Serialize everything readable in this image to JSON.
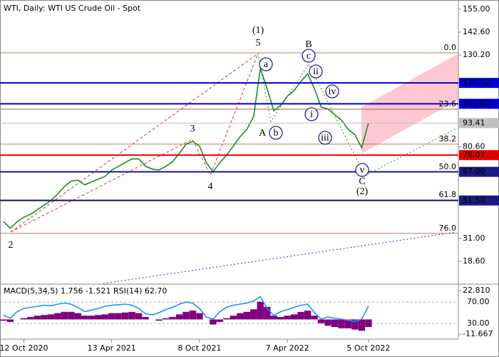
{
  "chart_data": [
    {
      "type": "line",
      "title": "WTI, Daily:  WTI US Crude Oil - Spot",
      "color": "#1f8a1f",
      "categories": [
        null,
        null,
        null,
        "12 Oct 2020",
        null,
        null,
        null,
        null,
        null,
        null,
        null,
        null,
        null,
        null,
        null,
        null,
        "13 Apr 2021",
        null,
        null,
        null,
        null,
        null,
        null,
        null,
        null,
        null,
        null,
        null,
        null,
        "8 Oct 2021",
        null,
        null,
        null,
        null,
        null,
        null,
        null,
        null,
        null,
        null,
        null,
        null,
        "7 Apr 2022",
        null,
        null,
        null,
        null,
        null,
        null,
        null,
        null,
        null,
        null,
        null,
        "5 Oct 2022"
      ],
      "values": [
        40,
        36.5,
        40,
        42.5,
        44,
        46.5,
        49,
        51.5,
        55,
        59,
        62,
        62.5,
        60,
        61.5,
        63,
        64.5,
        68,
        70,
        72,
        74,
        74,
        70,
        68.5,
        68,
        70,
        72.5,
        77,
        82,
        83.5,
        81,
        72,
        67,
        72,
        76,
        81,
        86,
        90,
        97,
        123,
        112,
        100,
        103,
        108,
        111,
        116,
        120,
        112,
        102,
        101,
        98,
        95,
        90,
        87,
        80,
        93.41
      ],
      "ylim": [
        6.6,
        160
      ],
      "yticks": [
        {
          "value": 155,
          "label": "155.00"
        },
        {
          "value": 142.6,
          "label": "142.60"
        },
        {
          "value": 130.2,
          "label": "130.20"
        },
        {
          "value": 80.6,
          "label": "80.60"
        },
        {
          "value": 31,
          "label": "31.00"
        },
        {
          "value": 18.6,
          "label": "18.60"
        }
      ],
      "levels": [
        {
          "value": 115.12,
          "color": "#0000cc"
        },
        {
          "value": 103.83,
          "color": "#0000cc"
        },
        {
          "value": 93.41,
          "color": "#c0c0c0"
        },
        {
          "value": 76.07,
          "color": "#e00000"
        },
        {
          "value": {
            "value": 67,
            "label": "67.00"
          },
          "color": "#1a1a80"
        },
        {
          "value": {
            "value": 51.5,
            "label": "51.50"
          },
          "color": "#1a1a80"
        }
      ],
      "fib_levels": [
        {
          "value": 131.4,
          "label": "0.0"
        },
        {
          "value": 100.9,
          "label": "23.6"
        },
        {
          "value": 82,
          "label": "38.2"
        },
        {
          "value": 66.9,
          "label": "50.0"
        },
        {
          "value": 51.8,
          "label": "61.8"
        },
        {
          "value": 33.7,
          "label": "76.0"
        }
      ],
      "fib_color": "#a0522d",
      "annotations": [
        {
          "text": "(1)",
          "color": "#2e8b2e"
        },
        {
          "text": "5",
          "color": "#a0522d"
        },
        {
          "text": "B",
          "color": "#a0522d"
        },
        {
          "text": "c",
          "color": "#2222aa"
        },
        {
          "text": "a",
          "color": "#2222aa"
        },
        {
          "text": "ii",
          "color": "#2222aa"
        },
        {
          "text": "iv",
          "color": "#2222aa"
        },
        {
          "text": "3",
          "color": "#a0522d"
        },
        {
          "text": "A",
          "color": "#a0522d"
        },
        {
          "text": "b",
          "color": "#2222aa"
        },
        {
          "text": "i",
          "color": "#2222aa"
        },
        {
          "text": "iii",
          "color": "#2222aa"
        },
        {
          "text": "4",
          "color": "#a0522d"
        },
        {
          "text": "v",
          "color": "#2222aa"
        },
        {
          "text": "C",
          "color": "#a0522d"
        },
        {
          "text": "(2)",
          "color": "#2e8b2e"
        },
        {
          "text": "2",
          "color": "#a0522d"
        }
      ]
    },
    {
      "type": "bar",
      "title": "MACD(5,34,5) 1.756 -1.521 RSI(14) 62.70",
      "ylim": [
        -15.6,
        26.8
      ],
      "yticks": [
        {
          "value": 22.81,
          "label": "22.810"
        },
        {
          "value": -11.667,
          "label": "-11.667"
        }
      ],
      "y2lim": [
        0.7,
        100.7
      ],
      "y2ticks": [
        {
          "value": 70,
          "label": "70.00"
        },
        {
          "value": 30,
          "label": "30.00"
        }
      ],
      "series": [
        {
          "color": "#800080",
          "values": [
            -1,
            -2,
            0,
            1,
            2,
            3,
            3.5,
            4,
            5,
            6,
            6,
            5,
            3,
            3,
            3.5,
            4,
            5,
            5,
            5.5,
            6,
            5,
            2,
            0,
            -1,
            1,
            2,
            4,
            6,
            7,
            5,
            0,
            -4,
            -2,
            1,
            3,
            5,
            6,
            8,
            14,
            10,
            3,
            2,
            3,
            4,
            6,
            7,
            3,
            -3,
            -5,
            -6,
            -7,
            -7,
            -8,
            -9,
            -6
          ]
        },
        {
          "type": "line",
          "axis": "y2",
          "color": "#1e90ff",
          "values": [
            45,
            40,
            52,
            58,
            60,
            62,
            64,
            63,
            66,
            68,
            66,
            60,
            52,
            55,
            58,
            62,
            64,
            65,
            66,
            64,
            58,
            48,
            46,
            50,
            56,
            60,
            66,
            70,
            68,
            58,
            42,
            38,
            52,
            60,
            64,
            66,
            68,
            72,
            80,
            58,
            45,
            52,
            56,
            60,
            64,
            66,
            50,
            38,
            42,
            40,
            38,
            36,
            34,
            38,
            62.7
          ]
        }
      ]
    }
  ]
}
